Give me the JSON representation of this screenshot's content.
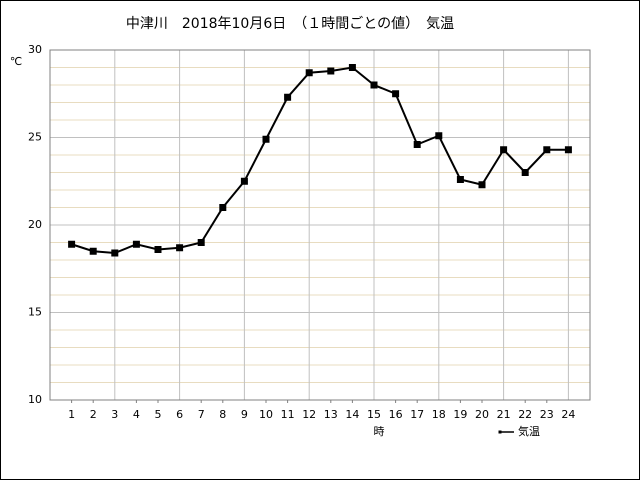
{
  "chart_data": {
    "type": "line",
    "title": "中津川　2018年10月6日　（１時間ごとの値）　気温",
    "y_label": "℃",
    "x_label": "時",
    "x": [
      1,
      2,
      3,
      4,
      5,
      6,
      7,
      8,
      9,
      10,
      11,
      12,
      13,
      14,
      15,
      16,
      17,
      18,
      19,
      20,
      21,
      22,
      23,
      24
    ],
    "series": [
      {
        "name": "気温",
        "color": "#000000",
        "values": [
          18.9,
          18.5,
          18.4,
          18.9,
          18.6,
          18.7,
          19.0,
          21.0,
          22.5,
          24.9,
          27.3,
          28.7,
          28.8,
          29.0,
          28.0,
          27.5,
          24.6,
          25.1,
          22.6,
          22.3,
          24.3,
          23.0,
          24.3,
          24.3
        ]
      }
    ],
    "xlim": [
      0,
      25
    ],
    "xticks": [
      1,
      2,
      3,
      4,
      5,
      6,
      7,
      8,
      9,
      10,
      11,
      12,
      13,
      14,
      15,
      16,
      17,
      18,
      19,
      20,
      21,
      22,
      23,
      24
    ],
    "ylim": [
      10,
      30
    ],
    "yticks": [
      10,
      15,
      20,
      25,
      30
    ],
    "grid": true,
    "legend": "bottom-right"
  }
}
